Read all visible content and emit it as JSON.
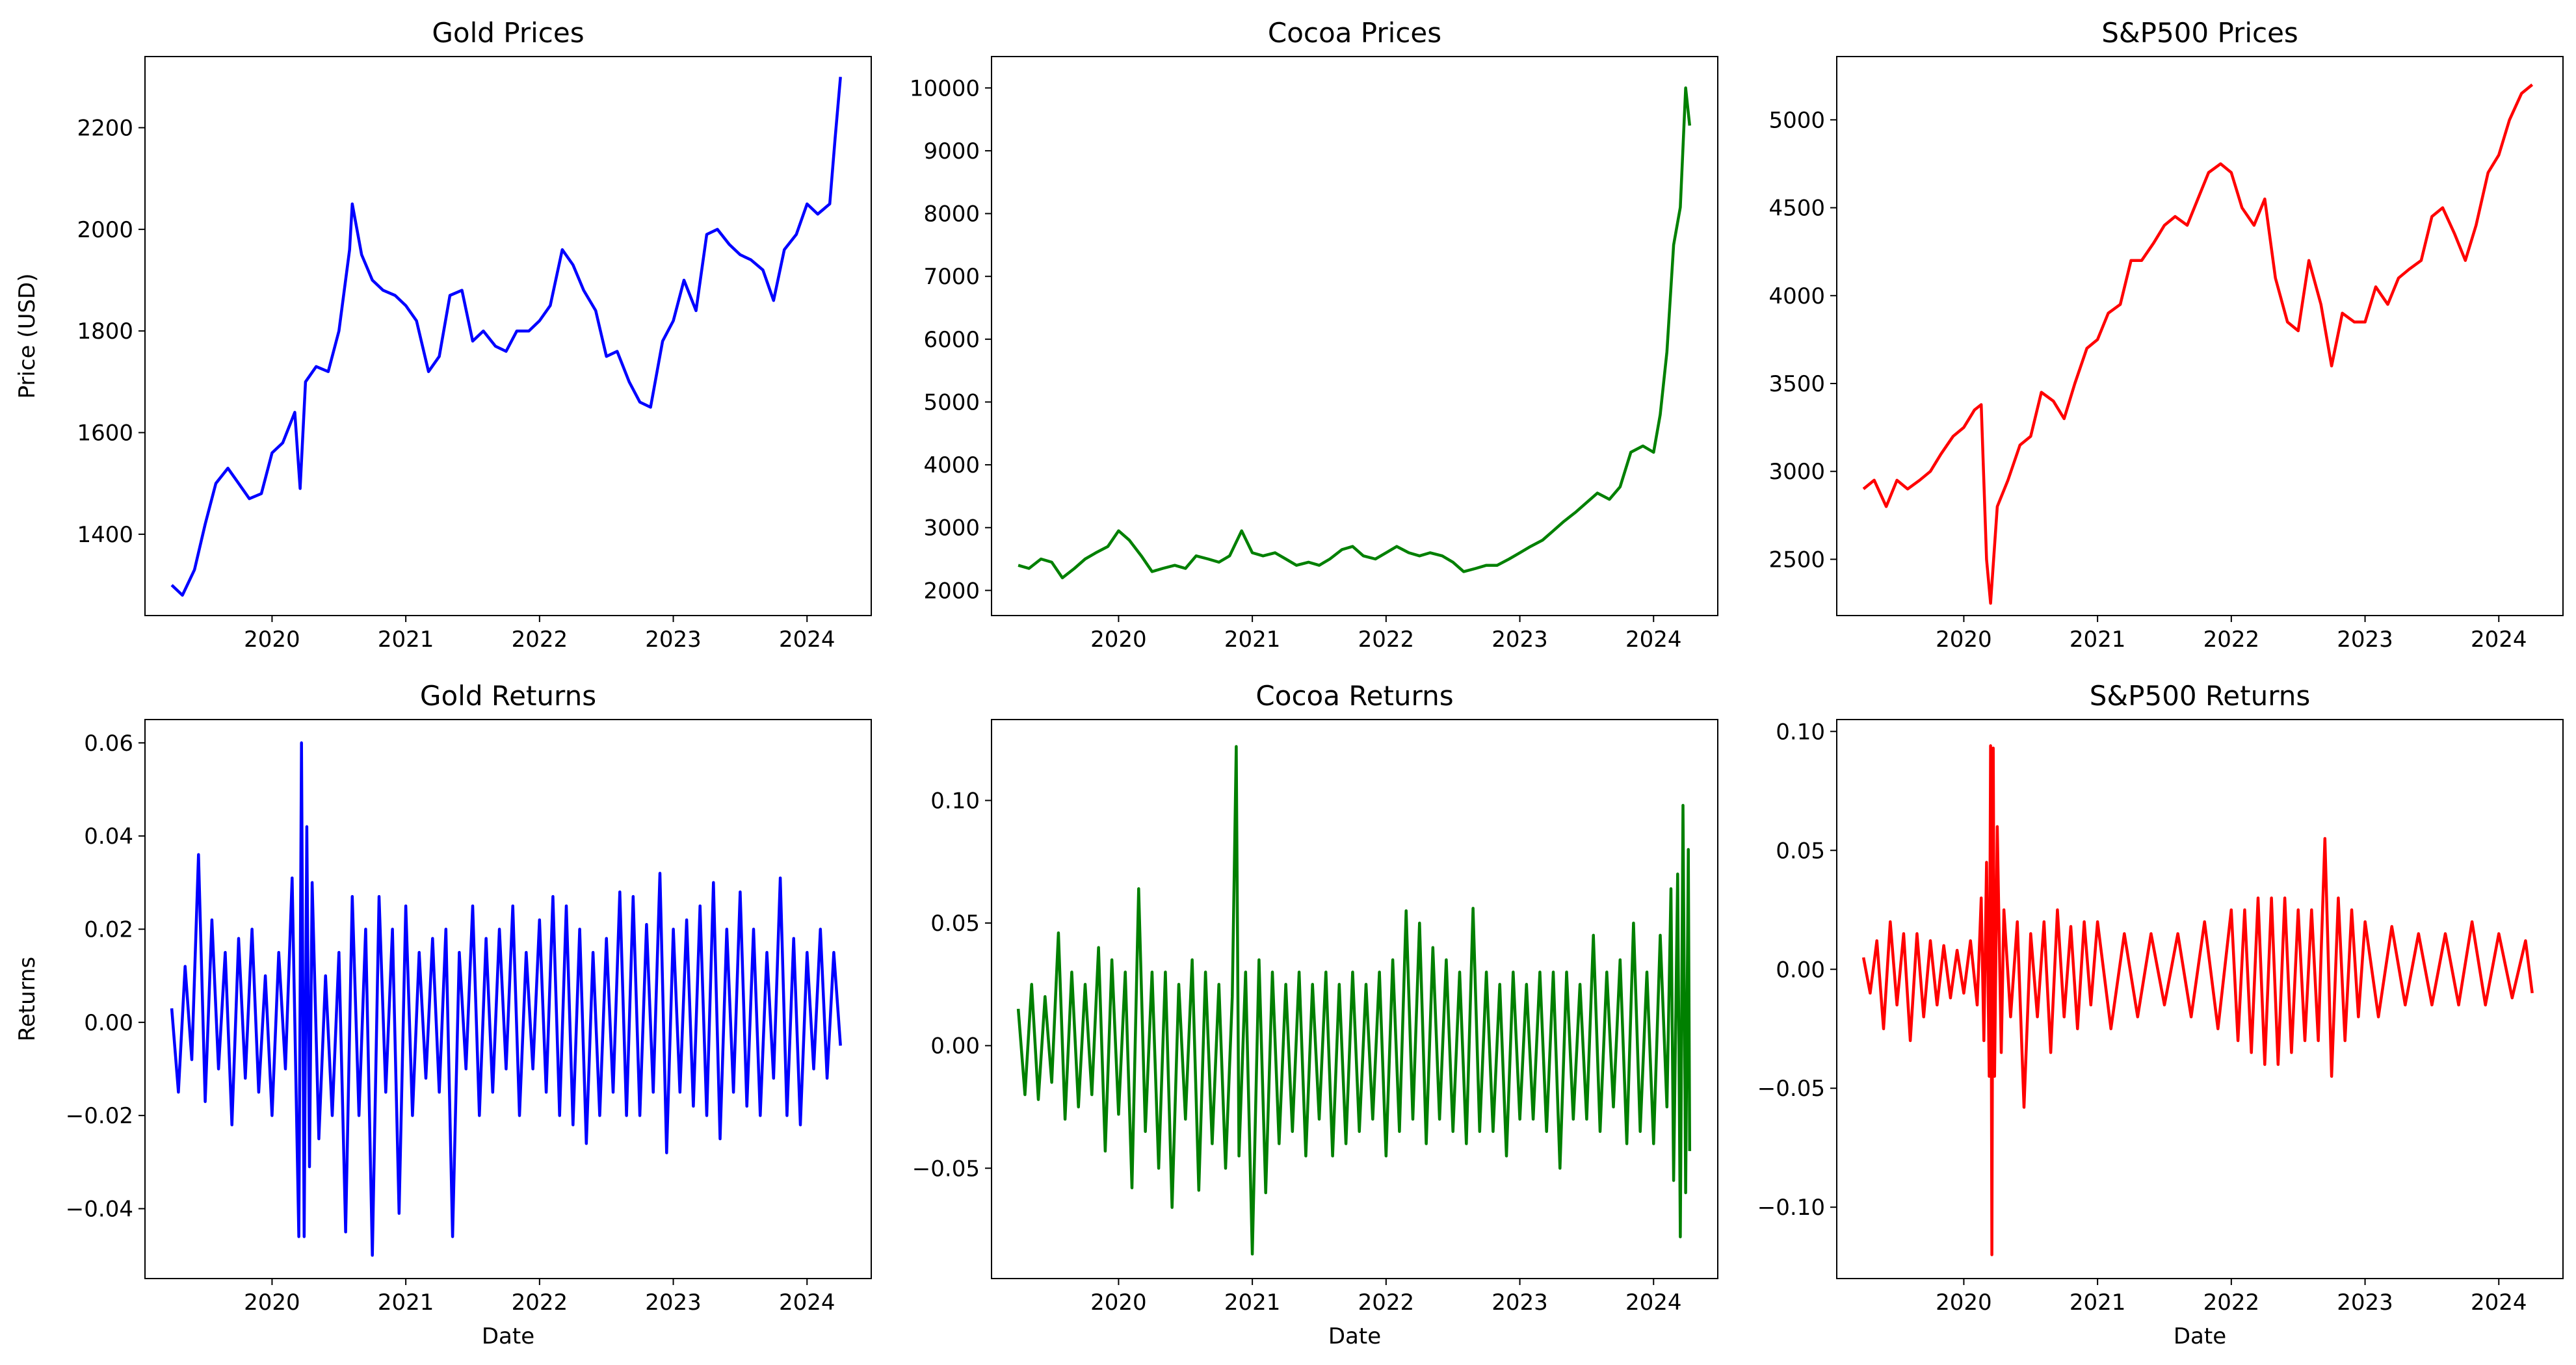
{
  "chart_data": [
    {
      "type": "line",
      "title": "Gold Prices",
      "xlabel": "",
      "ylabel": "Price (USD)",
      "color": "#0000ff",
      "xlim": [
        2019.05,
        2024.48
      ],
      "ylim": [
        1240,
        2340
      ],
      "xticks": [
        "2020",
        "2021",
        "2022",
        "2023",
        "2024"
      ],
      "yticks": [
        "1400",
        "1600",
        "1800",
        "2000",
        "2200"
      ],
      "x": [
        2019.25,
        2019.33,
        2019.42,
        2019.5,
        2019.58,
        2019.67,
        2019.75,
        2019.83,
        2019.92,
        2020.0,
        2020.08,
        2020.17,
        2020.21,
        2020.25,
        2020.33,
        2020.42,
        2020.5,
        2020.58,
        2020.6,
        2020.67,
        2020.75,
        2020.83,
        2020.92,
        2021.0,
        2021.08,
        2021.17,
        2021.25,
        2021.33,
        2021.42,
        2021.5,
        2021.58,
        2021.67,
        2021.75,
        2021.83,
        2021.92,
        2022.0,
        2022.08,
        2022.17,
        2022.25,
        2022.33,
        2022.42,
        2022.5,
        2022.58,
        2022.67,
        2022.75,
        2022.83,
        2022.92,
        2023.0,
        2023.08,
        2023.17,
        2023.25,
        2023.33,
        2023.42,
        2023.5,
        2023.58,
        2023.67,
        2023.75,
        2023.83,
        2023.92,
        2024.0,
        2024.08,
        2024.17,
        2024.21,
        2024.25
      ],
      "values": [
        1300,
        1280,
        1330,
        1420,
        1500,
        1530,
        1500,
        1470,
        1480,
        1560,
        1580,
        1640,
        1490,
        1700,
        1730,
        1720,
        1800,
        1960,
        2050,
        1950,
        1900,
        1880,
        1870,
        1850,
        1820,
        1720,
        1750,
        1870,
        1880,
        1780,
        1800,
        1770,
        1760,
        1800,
        1800,
        1820,
        1850,
        1960,
        1930,
        1880,
        1840,
        1750,
        1760,
        1700,
        1660,
        1650,
        1780,
        1820,
        1900,
        1840,
        1990,
        2000,
        1970,
        1950,
        1940,
        1920,
        1860,
        1960,
        1990,
        2050,
        2030,
        2050,
        2180,
        2300
      ]
    },
    {
      "type": "line",
      "title": "Cocoa Prices",
      "xlabel": "",
      "ylabel": "",
      "color": "#008000",
      "xlim": [
        2019.05,
        2024.48
      ],
      "ylim": [
        1600,
        10500
      ],
      "xticks": [
        "2020",
        "2021",
        "2022",
        "2023",
        "2024"
      ],
      "yticks": [
        "2000",
        "3000",
        "4000",
        "5000",
        "6000",
        "7000",
        "8000",
        "9000",
        "10000"
      ],
      "x": [
        2019.25,
        2019.33,
        2019.42,
        2019.5,
        2019.58,
        2019.67,
        2019.75,
        2019.83,
        2019.92,
        2020.0,
        2020.08,
        2020.17,
        2020.25,
        2020.33,
        2020.42,
        2020.5,
        2020.58,
        2020.67,
        2020.75,
        2020.83,
        2020.92,
        2021.0,
        2021.08,
        2021.17,
        2021.25,
        2021.33,
        2021.42,
        2021.5,
        2021.58,
        2021.67,
        2021.75,
        2021.83,
        2021.92,
        2022.0,
        2022.08,
        2022.17,
        2022.25,
        2022.33,
        2022.42,
        2022.5,
        2022.58,
        2022.67,
        2022.75,
        2022.83,
        2022.92,
        2023.0,
        2023.08,
        2023.17,
        2023.25,
        2023.33,
        2023.42,
        2023.5,
        2023.58,
        2023.67,
        2023.75,
        2023.83,
        2023.92,
        2024.0,
        2024.05,
        2024.1,
        2024.15,
        2024.2,
        2024.24,
        2024.27
      ],
      "values": [
        2400,
        2350,
        2500,
        2450,
        2200,
        2350,
        2500,
        2600,
        2700,
        2950,
        2800,
        2550,
        2300,
        2350,
        2400,
        2350,
        2550,
        2500,
        2450,
        2550,
        2950,
        2600,
        2550,
        2600,
        2500,
        2400,
        2450,
        2400,
        2500,
        2650,
        2700,
        2550,
        2500,
        2600,
        2700,
        2600,
        2550,
        2600,
        2550,
        2450,
        2300,
        2350,
        2400,
        2400,
        2500,
        2600,
        2700,
        2800,
        2950,
        3100,
        3250,
        3400,
        3550,
        3450,
        3650,
        4200,
        4300,
        4200,
        4800,
        5800,
        7500,
        8100,
        10000,
        9400
      ]
    },
    {
      "type": "line",
      "title": "S&P500 Prices",
      "xlabel": "",
      "ylabel": "",
      "color": "#ff0000",
      "xlim": [
        2019.05,
        2024.48
      ],
      "ylim": [
        2180,
        5360
      ],
      "xticks": [
        "2020",
        "2021",
        "2022",
        "2023",
        "2024"
      ],
      "yticks": [
        "2500",
        "3000",
        "3500",
        "4000",
        "4500",
        "5000"
      ],
      "x": [
        2019.25,
        2019.33,
        2019.42,
        2019.5,
        2019.58,
        2019.67,
        2019.75,
        2019.83,
        2019.92,
        2020.0,
        2020.08,
        2020.13,
        2020.17,
        2020.2,
        2020.25,
        2020.33,
        2020.42,
        2020.5,
        2020.58,
        2020.67,
        2020.75,
        2020.83,
        2020.92,
        2021.0,
        2021.08,
        2021.17,
        2021.25,
        2021.33,
        2021.42,
        2021.5,
        2021.58,
        2021.67,
        2021.75,
        2021.83,
        2021.92,
        2022.0,
        2022.08,
        2022.17,
        2022.25,
        2022.33,
        2022.42,
        2022.5,
        2022.58,
        2022.67,
        2022.75,
        2022.83,
        2022.92,
        2023.0,
        2023.08,
        2023.17,
        2023.25,
        2023.33,
        2023.42,
        2023.5,
        2023.58,
        2023.67,
        2023.75,
        2023.83,
        2023.92,
        2024.0,
        2024.08,
        2024.17,
        2024.25
      ],
      "values": [
        2900,
        2950,
        2800,
        2950,
        2900,
        2950,
        3000,
        3100,
        3200,
        3250,
        3350,
        3380,
        2500,
        2250,
        2800,
        2950,
        3150,
        3200,
        3450,
        3400,
        3300,
        3500,
        3700,
        3750,
        3900,
        3950,
        4200,
        4200,
        4300,
        4400,
        4450,
        4400,
        4550,
        4700,
        4750,
        4700,
        4500,
        4400,
        4550,
        4100,
        3850,
        3800,
        4200,
        3950,
        3600,
        3900,
        3850,
        3850,
        4050,
        3950,
        4100,
        4150,
        4200,
        4450,
        4500,
        4350,
        4200,
        4400,
        4700,
        4800,
        5000,
        5150,
        5200
      ]
    },
    {
      "type": "line",
      "title": "Gold Returns",
      "xlabel": "Date",
      "ylabel": "Returns",
      "color": "#0000ff",
      "xlim": [
        2019.05,
        2024.48
      ],
      "ylim": [
        -0.055,
        0.065
      ],
      "xticks": [
        "2020",
        "2021",
        "2022",
        "2023",
        "2024"
      ],
      "yticks": [
        "−0.04",
        "−0.02",
        "0.00",
        "0.02",
        "0.04",
        "0.06"
      ],
      "x": [
        2019.25,
        2019.3,
        2019.35,
        2019.4,
        2019.45,
        2019.5,
        2019.55,
        2019.6,
        2019.65,
        2019.7,
        2019.75,
        2019.8,
        2019.85,
        2019.9,
        2019.95,
        2020.0,
        2020.05,
        2020.1,
        2020.15,
        2020.2,
        2020.22,
        2020.24,
        2020.26,
        2020.28,
        2020.3,
        2020.35,
        2020.4,
        2020.45,
        2020.5,
        2020.55,
        2020.6,
        2020.65,
        2020.7,
        2020.75,
        2020.8,
        2020.85,
        2020.9,
        2020.95,
        2021.0,
        2021.05,
        2021.1,
        2021.15,
        2021.2,
        2021.25,
        2021.3,
        2021.35,
        2021.4,
        2021.45,
        2021.5,
        2021.55,
        2021.6,
        2021.65,
        2021.7,
        2021.75,
        2021.8,
        2021.85,
        2021.9,
        2021.95,
        2022.0,
        2022.05,
        2022.1,
        2022.15,
        2022.2,
        2022.25,
        2022.3,
        2022.35,
        2022.4,
        2022.45,
        2022.5,
        2022.55,
        2022.6,
        2022.65,
        2022.7,
        2022.75,
        2022.8,
        2022.85,
        2022.9,
        2022.95,
        2023.0,
        2023.05,
        2023.1,
        2023.15,
        2023.2,
        2023.25,
        2023.3,
        2023.35,
        2023.4,
        2023.45,
        2023.5,
        2023.55,
        2023.6,
        2023.65,
        2023.7,
        2023.75,
        2023.8,
        2023.85,
        2023.9,
        2023.95,
        2024.0,
        2024.05,
        2024.1,
        2024.15,
        2024.2,
        2024.25
      ],
      "values": [
        0.003,
        -0.015,
        0.012,
        -0.008,
        0.036,
        -0.017,
        0.022,
        -0.01,
        0.015,
        -0.022,
        0.018,
        -0.012,
        0.02,
        -0.015,
        0.01,
        -0.02,
        0.015,
        -0.01,
        0.031,
        -0.046,
        0.06,
        -0.046,
        0.042,
        -0.031,
        0.03,
        -0.025,
        0.01,
        -0.02,
        0.015,
        -0.045,
        0.027,
        -0.02,
        0.02,
        -0.05,
        0.027,
        -0.015,
        0.02,
        -0.041,
        0.025,
        -0.02,
        0.015,
        -0.012,
        0.018,
        -0.015,
        0.02,
        -0.046,
        0.015,
        -0.01,
        0.025,
        -0.02,
        0.018,
        -0.015,
        0.02,
        -0.01,
        0.025,
        -0.02,
        0.015,
        -0.01,
        0.022,
        -0.015,
        0.027,
        -0.02,
        0.025,
        -0.022,
        0.02,
        -0.026,
        0.015,
        -0.02,
        0.018,
        -0.015,
        0.028,
        -0.02,
        0.027,
        -0.02,
        0.021,
        -0.015,
        0.032,
        -0.028,
        0.02,
        -0.015,
        0.022,
        -0.018,
        0.025,
        -0.02,
        0.03,
        -0.025,
        0.02,
        -0.015,
        0.028,
        -0.018,
        0.02,
        -0.02,
        0.015,
        -0.012,
        0.031,
        -0.02,
        0.018,
        -0.022,
        0.015,
        -0.01,
        0.02,
        -0.012,
        0.015,
        -0.005
      ]
    },
    {
      "type": "line",
      "title": "Cocoa Returns",
      "xlabel": "Date",
      "ylabel": "",
      "color": "#008000",
      "xlim": [
        2019.05,
        2024.48
      ],
      "ylim": [
        -0.095,
        0.133
      ],
      "xticks": [
        "2020",
        "2021",
        "2022",
        "2023",
        "2024"
      ],
      "yticks": [
        "−0.05",
        "0.00",
        "0.05",
        "0.10"
      ],
      "x": [
        2019.25,
        2019.3,
        2019.35,
        2019.4,
        2019.45,
        2019.5,
        2019.55,
        2019.6,
        2019.65,
        2019.7,
        2019.75,
        2019.8,
        2019.85,
        2019.9,
        2019.95,
        2020.0,
        2020.05,
        2020.1,
        2020.15,
        2020.2,
        2020.25,
        2020.3,
        2020.35,
        2020.4,
        2020.45,
        2020.5,
        2020.55,
        2020.6,
        2020.65,
        2020.7,
        2020.75,
        2020.8,
        2020.85,
        2020.88,
        2020.9,
        2020.95,
        2021.0,
        2021.05,
        2021.1,
        2021.15,
        2021.2,
        2021.25,
        2021.3,
        2021.35,
        2021.4,
        2021.45,
        2021.5,
        2021.55,
        2021.6,
        2021.65,
        2021.7,
        2021.75,
        2021.8,
        2021.85,
        2021.9,
        2021.95,
        2022.0,
        2022.05,
        2022.1,
        2022.15,
        2022.2,
        2022.25,
        2022.3,
        2022.35,
        2022.4,
        2022.45,
        2022.5,
        2022.55,
        2022.6,
        2022.65,
        2022.7,
        2022.75,
        2022.8,
        2022.85,
        2022.9,
        2022.95,
        2023.0,
        2023.05,
        2023.1,
        2023.15,
        2023.2,
        2023.25,
        2023.3,
        2023.35,
        2023.4,
        2023.45,
        2023.5,
        2023.55,
        2023.6,
        2023.65,
        2023.7,
        2023.75,
        2023.8,
        2023.85,
        2023.9,
        2023.95,
        2024.0,
        2024.05,
        2024.1,
        2024.13,
        2024.15,
        2024.18,
        2024.2,
        2024.22,
        2024.24,
        2024.26,
        2024.27
      ],
      "values": [
        0.015,
        -0.02,
        0.025,
        -0.022,
        0.02,
        -0.015,
        0.046,
        -0.03,
        0.03,
        -0.025,
        0.025,
        -0.02,
        0.04,
        -0.043,
        0.035,
        -0.028,
        0.03,
        -0.058,
        0.064,
        -0.035,
        0.03,
        -0.05,
        0.03,
        -0.066,
        0.025,
        -0.03,
        0.035,
        -0.059,
        0.03,
        -0.04,
        0.025,
        -0.05,
        0.02,
        0.122,
        -0.045,
        0.03,
        -0.085,
        0.035,
        -0.06,
        0.03,
        -0.04,
        0.025,
        -0.035,
        0.03,
        -0.045,
        0.025,
        -0.03,
        0.03,
        -0.045,
        0.025,
        -0.04,
        0.03,
        -0.035,
        0.025,
        -0.03,
        0.03,
        -0.045,
        0.035,
        -0.035,
        0.055,
        -0.03,
        0.05,
        -0.04,
        0.04,
        -0.03,
        0.035,
        -0.035,
        0.03,
        -0.04,
        0.056,
        -0.035,
        0.03,
        -0.035,
        0.025,
        -0.045,
        0.03,
        -0.03,
        0.025,
        -0.03,
        0.03,
        -0.035,
        0.03,
        -0.05,
        0.03,
        -0.03,
        0.025,
        -0.03,
        0.045,
        -0.035,
        0.03,
        -0.025,
        0.035,
        -0.04,
        0.05,
        -0.035,
        0.03,
        -0.04,
        0.045,
        -0.025,
        0.064,
        -0.055,
        0.07,
        -0.078,
        0.098,
        -0.06,
        0.08,
        -0.043
      ]
    },
    {
      "type": "line",
      "title": "S&P500 Returns",
      "xlabel": "Date",
      "ylabel": "",
      "color": "#ff0000",
      "xlim": [
        2019.05,
        2024.48
      ],
      "ylim": [
        -0.13,
        0.105
      ],
      "xticks": [
        "2020",
        "2021",
        "2022",
        "2023",
        "2024"
      ],
      "yticks": [
        "−0.10",
        "−0.05",
        "0.00",
        "0.05",
        "0.10"
      ],
      "x": [
        2019.25,
        2019.3,
        2019.35,
        2019.4,
        2019.45,
        2019.5,
        2019.55,
        2019.6,
        2019.65,
        2019.7,
        2019.75,
        2019.8,
        2019.85,
        2019.9,
        2019.95,
        2020.0,
        2020.05,
        2020.1,
        2020.13,
        2020.15,
        2020.17,
        2020.19,
        2020.2,
        2020.21,
        2020.22,
        2020.23,
        2020.25,
        2020.28,
        2020.3,
        2020.35,
        2020.4,
        2020.45,
        2020.5,
        2020.55,
        2020.6,
        2020.65,
        2020.7,
        2020.75,
        2020.8,
        2020.85,
        2020.9,
        2020.95,
        2021.0,
        2021.1,
        2021.2,
        2021.3,
        2021.4,
        2021.5,
        2021.6,
        2021.7,
        2021.8,
        2021.9,
        2022.0,
        2022.05,
        2022.1,
        2022.15,
        2022.2,
        2022.25,
        2022.3,
        2022.35,
        2022.4,
        2022.45,
        2022.5,
        2022.55,
        2022.6,
        2022.65,
        2022.7,
        2022.75,
        2022.8,
        2022.85,
        2022.9,
        2022.95,
        2023.0,
        2023.1,
        2023.2,
        2023.3,
        2023.4,
        2023.5,
        2023.6,
        2023.7,
        2023.8,
        2023.9,
        2024.0,
        2024.1,
        2024.2,
        2024.25
      ],
      "values": [
        0.005,
        -0.01,
        0.012,
        -0.025,
        0.02,
        -0.015,
        0.015,
        -0.03,
        0.015,
        -0.02,
        0.012,
        -0.015,
        0.01,
        -0.012,
        0.008,
        -0.01,
        0.012,
        -0.015,
        0.03,
        -0.03,
        0.045,
        -0.045,
        0.094,
        -0.12,
        0.093,
        -0.045,
        0.06,
        -0.035,
        0.025,
        -0.02,
        0.02,
        -0.058,
        0.015,
        -0.02,
        0.02,
        -0.035,
        0.025,
        -0.02,
        0.018,
        -0.025,
        0.02,
        -0.015,
        0.02,
        -0.025,
        0.015,
        -0.02,
        0.015,
        -0.015,
        0.015,
        -0.02,
        0.02,
        -0.025,
        0.025,
        -0.03,
        0.025,
        -0.035,
        0.03,
        -0.04,
        0.03,
        -0.04,
        0.03,
        -0.035,
        0.025,
        -0.03,
        0.025,
        -0.03,
        0.055,
        -0.045,
        0.03,
        -0.03,
        0.025,
        -0.02,
        0.02,
        -0.02,
        0.018,
        -0.015,
        0.015,
        -0.015,
        0.015,
        -0.015,
        0.02,
        -0.015,
        0.015,
        -0.012,
        0.012,
        -0.01
      ]
    }
  ]
}
